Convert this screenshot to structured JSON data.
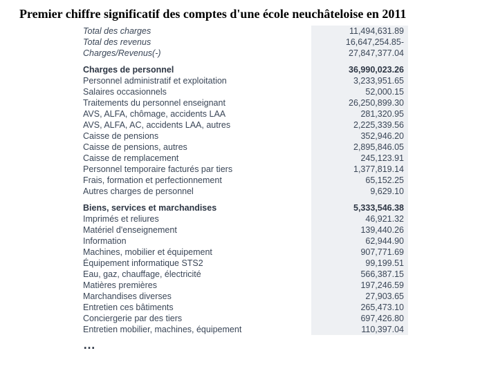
{
  "title": "Premier chiffre significatif des comptes d'une école neuchâteloise en 2011",
  "summary": [
    {
      "label": "Total des charges",
      "value": "11,494,631.89",
      "italic": true
    },
    {
      "label": "Total des revenus",
      "value": "16,647,254.85-",
      "italic": true
    },
    {
      "label": "Charges/Revenus(-)",
      "value": "27,847,377.04",
      "italic": true
    }
  ],
  "section1": {
    "header_label": "Charges de personnel",
    "header_value": "36,990,023.26",
    "rows": [
      {
        "label": "Personnel administratif et exploitation",
        "value": "3,233,951.65"
      },
      {
        "label": "Salaires occasionnels",
        "value": "52,000.15"
      },
      {
        "label": "Traitements du personnel enseignant",
        "value": "26,250,899.30"
      },
      {
        "label": "AVS, ALFA, chômage, accidents LAA",
        "value": "281,320.95"
      },
      {
        "label": "AVS, ALFA, AC, accidents LAA, autres",
        "value": "2,225,339.56"
      },
      {
        "label": "Caisse de pensions",
        "value": "352,946.20"
      },
      {
        "label": "Caisse de pensions, autres",
        "value": "2,895,846.05"
      },
      {
        "label": "Caisse de remplacement",
        "value": "245,123.91"
      },
      {
        "label": "Personnel temporaire facturés par tiers",
        "value": "1,377,819.14"
      },
      {
        "label": "Frais, formation et perfectionnement",
        "value": "65,152.25"
      },
      {
        "label": "Autres charges de personnel",
        "value": "9,629.10"
      }
    ]
  },
  "section2": {
    "header_label": "Biens, services et marchandises",
    "header_value": "5,333,546.38",
    "rows": [
      {
        "label": "Imprimés et reliures",
        "value": "46,921.32"
      },
      {
        "label": "Matériel d'enseignement",
        "value": "139,440.26"
      },
      {
        "label": "Information",
        "value": "62,944.90"
      },
      {
        "label": "Machines, mobilier et équipement",
        "value": "907,771.69"
      },
      {
        "label": "Équipement informatique STS2",
        "value": "99,199.51"
      },
      {
        "label": "Eau, gaz, chauffage, électricité",
        "value": "566,387.15"
      },
      {
        "label": "Matières premières",
        "value": "197,246.59"
      },
      {
        "label": "Marchandises diverses",
        "value": "27,903.65"
      },
      {
        "label": "Entretien ces bâtiments",
        "value": "265,473.10"
      },
      {
        "label": "Conciergerie par des tiers",
        "value": "697,426.80"
      },
      {
        "label": "Entretien mobilier, machines, équipement",
        "value": "110,397.04"
      }
    ]
  },
  "ellipsis": "…"
}
